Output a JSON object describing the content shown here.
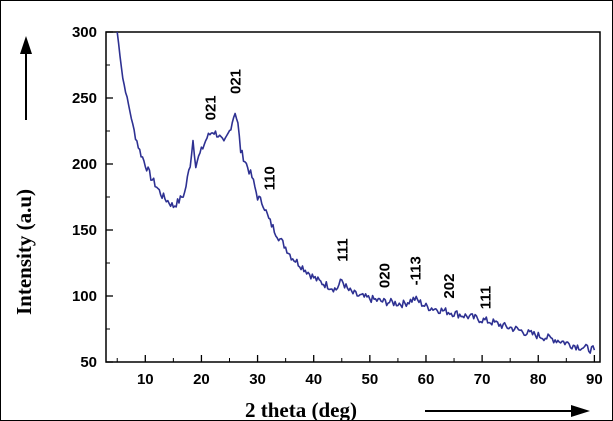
{
  "chart_data": {
    "type": "line",
    "title": "",
    "xlabel": "2 theta (deg)",
    "ylabel": "Intensity (a.u)",
    "xlim": [
      3,
      91
    ],
    "ylim": [
      50,
      300
    ],
    "xticks": [
      10,
      20,
      30,
      40,
      50,
      60,
      70,
      80,
      90
    ],
    "yticks": [
      50,
      100,
      150,
      200,
      250,
      300
    ],
    "grid": false,
    "colors": {
      "line": "#2e3192",
      "axis": "#000000"
    },
    "series": [
      {
        "x": [
          5,
          6,
          7,
          8,
          9,
          10,
          11,
          12,
          13,
          14,
          15,
          16,
          17,
          18,
          18.5,
          19,
          20,
          21,
          22,
          23,
          24,
          25,
          26,
          26.5,
          27,
          28,
          29,
          30,
          31,
          32,
          33,
          34,
          35,
          36,
          37,
          38,
          39,
          40,
          41,
          42,
          43,
          44,
          45,
          46,
          47,
          48,
          50,
          52,
          54,
          56,
          58,
          60,
          62,
          64,
          66,
          68,
          70,
          72,
          74,
          76,
          78,
          80,
          82,
          84,
          86,
          88,
          90
        ],
        "y": [
          300,
          265,
          245,
          225,
          210,
          200,
          190,
          183,
          176,
          172,
          168,
          172,
          178,
          200,
          218,
          200,
          210,
          220,
          225,
          222,
          215,
          225,
          240,
          230,
          210,
          200,
          190,
          175,
          170,
          158,
          150,
          143,
          137,
          130,
          126,
          122,
          118,
          114,
          111,
          109,
          107,
          105,
          112,
          105,
          102,
          100,
          98,
          96,
          95,
          94,
          98,
          92,
          90,
          88,
          86,
          84,
          82,
          80,
          77,
          75,
          72,
          70,
          68,
          66,
          63,
          61,
          59
        ]
      }
    ],
    "peak_labels": [
      {
        "text": "021",
        "x": 22.5,
        "y": 233
      },
      {
        "text": "021",
        "x": 27,
        "y": 253
      },
      {
        "text": "110",
        "x": 33,
        "y": 180
      },
      {
        "text": "111",
        "x": 46,
        "y": 126
      },
      {
        "text": "020",
        "x": 53.5,
        "y": 106
      },
      {
        "text": "-113",
        "x": 59,
        "y": 108
      },
      {
        "text": "202",
        "x": 65,
        "y": 98
      },
      {
        "text": "111",
        "x": 71.5,
        "y": 90
      }
    ]
  }
}
